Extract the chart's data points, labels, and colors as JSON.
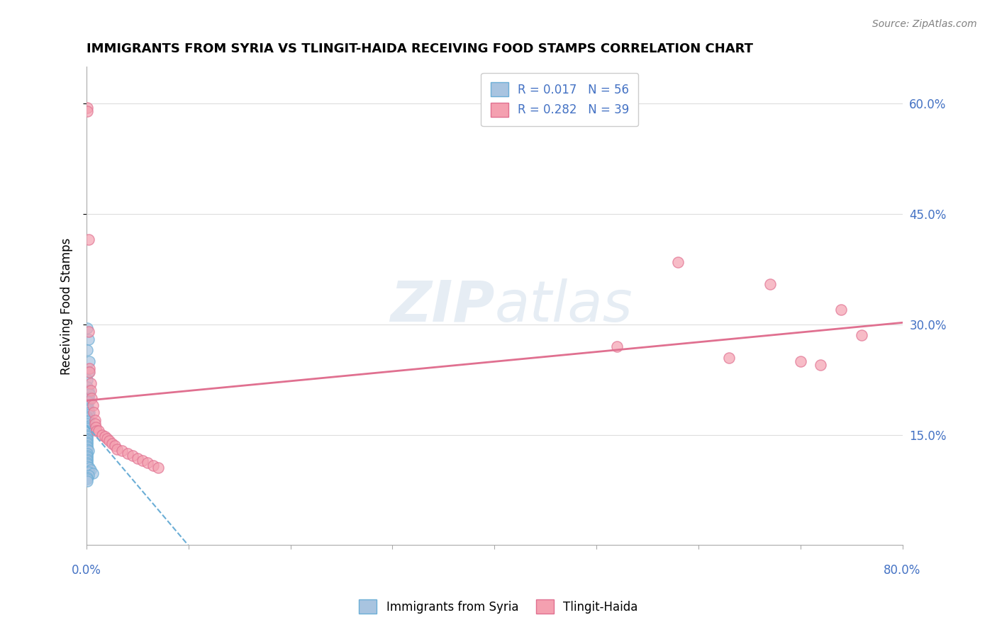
{
  "title": "IMMIGRANTS FROM SYRIA VS TLINGIT-HAIDA RECEIVING FOOD STAMPS CORRELATION CHART",
  "source": "Source: ZipAtlas.com",
  "ylabel": "Receiving Food Stamps",
  "ytick_labels": [
    "60.0%",
    "45.0%",
    "30.0%",
    "15.0%"
  ],
  "ytick_values": [
    0.6,
    0.45,
    0.3,
    0.15
  ],
  "xlim": [
    0.0,
    0.8
  ],
  "ylim": [
    0.0,
    0.65
  ],
  "blue_R": "0.017",
  "blue_N": "56",
  "pink_R": "0.282",
  "pink_N": "39",
  "blue_color": "#a8c4e0",
  "pink_color": "#f4a0b0",
  "blue_line_color": "#6baed6",
  "pink_line_color": "#e07090",
  "legend_label_blue": "Immigrants from Syria",
  "legend_label_pink": "Tlingit-Haida",
  "watermark_zip": "ZIP",
  "watermark_atlas": "atlas",
  "blue_scatter_x": [
    0.001,
    0.002,
    0.001,
    0.003,
    0.002,
    0.001,
    0.001,
    0.002,
    0.003,
    0.001,
    0.002,
    0.001,
    0.002,
    0.001,
    0.001,
    0.002,
    0.001,
    0.001,
    0.003,
    0.002,
    0.001,
    0.001,
    0.002,
    0.001,
    0.001,
    0.002,
    0.001,
    0.001,
    0.001,
    0.001,
    0.001,
    0.001,
    0.001,
    0.001,
    0.001,
    0.001,
    0.001,
    0.001,
    0.001,
    0.002,
    0.001,
    0.001,
    0.001,
    0.001,
    0.001,
    0.001,
    0.001,
    0.001,
    0.003,
    0.004,
    0.002,
    0.006,
    0.002,
    0.001,
    0.001,
    0.001
  ],
  "blue_scatter_y": [
    0.295,
    0.28,
    0.265,
    0.25,
    0.235,
    0.225,
    0.215,
    0.21,
    0.205,
    0.2,
    0.2,
    0.195,
    0.195,
    0.19,
    0.188,
    0.185,
    0.185,
    0.183,
    0.18,
    0.178,
    0.175,
    0.173,
    0.17,
    0.168,
    0.165,
    0.162,
    0.16,
    0.158,
    0.155,
    0.153,
    0.15,
    0.148,
    0.145,
    0.143,
    0.14,
    0.138,
    0.135,
    0.133,
    0.13,
    0.128,
    0.125,
    0.122,
    0.12,
    0.117,
    0.115,
    0.112,
    0.11,
    0.107,
    0.105,
    0.102,
    0.1,
    0.098,
    0.095,
    0.092,
    0.09,
    0.087
  ],
  "pink_scatter_x": [
    0.001,
    0.001,
    0.002,
    0.002,
    0.003,
    0.003,
    0.004,
    0.004,
    0.005,
    0.006,
    0.007,
    0.008,
    0.008,
    0.009,
    0.01,
    0.012,
    0.015,
    0.018,
    0.02,
    0.022,
    0.025,
    0.028,
    0.03,
    0.035,
    0.04,
    0.045,
    0.05,
    0.055,
    0.06,
    0.065,
    0.07,
    0.52,
    0.58,
    0.63,
    0.67,
    0.7,
    0.72,
    0.74,
    0.76
  ],
  "pink_scatter_y": [
    0.595,
    0.59,
    0.415,
    0.29,
    0.24,
    0.235,
    0.22,
    0.21,
    0.2,
    0.19,
    0.18,
    0.17,
    0.165,
    0.16,
    0.155,
    0.155,
    0.15,
    0.148,
    0.145,
    0.142,
    0.138,
    0.135,
    0.13,
    0.128,
    0.125,
    0.122,
    0.118,
    0.115,
    0.112,
    0.108,
    0.105,
    0.27,
    0.385,
    0.255,
    0.355,
    0.25,
    0.245,
    0.32,
    0.285
  ]
}
